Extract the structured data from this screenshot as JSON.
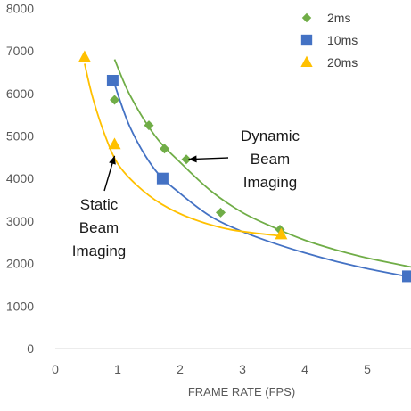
{
  "chart_data": {
    "type": "scatter",
    "title": "",
    "xlabel": "FRAME RATE (FPS)",
    "ylabel": "",
    "xlim": [
      0,
      5.7
    ],
    "ylim": [
      0,
      8000
    ],
    "xticks": [
      "0",
      "1",
      "2",
      "3",
      "4",
      "5"
    ],
    "yticks": [
      "0",
      "1000",
      "2000",
      "3000",
      "4000",
      "5000",
      "6000",
      "7000",
      "8000"
    ],
    "grid": false,
    "legend_position": "top-right",
    "series": [
      {
        "name": "2ms",
        "marker": "diamond",
        "color": "#70ad47",
        "points": [
          [
            0.95,
            5850
          ],
          [
            1.5,
            5250
          ],
          [
            1.75,
            4700
          ],
          [
            2.1,
            4450
          ],
          [
            2.65,
            3200
          ],
          [
            3.6,
            2800
          ]
        ],
        "trend": [
          [
            0.95,
            6800
          ],
          [
            1.2,
            5950
          ],
          [
            1.6,
            5000
          ],
          [
            2.0,
            4380
          ],
          [
            2.5,
            3700
          ],
          [
            3.0,
            3200
          ],
          [
            3.5,
            2850
          ],
          [
            4.0,
            2550
          ],
          [
            4.5,
            2320
          ],
          [
            5.0,
            2130
          ],
          [
            5.7,
            1920
          ]
        ]
      },
      {
        "name": "10ms",
        "marker": "square",
        "color": "#4472c4",
        "points": [
          [
            0.92,
            6300
          ],
          [
            1.72,
            4000
          ],
          [
            5.65,
            1700
          ]
        ],
        "trend": [
          [
            0.92,
            6350
          ],
          [
            1.2,
            5200
          ],
          [
            1.6,
            4200
          ],
          [
            2.0,
            3650
          ],
          [
            2.5,
            3100
          ],
          [
            3.0,
            2750
          ],
          [
            3.5,
            2480
          ],
          [
            4.0,
            2250
          ],
          [
            4.5,
            2050
          ],
          [
            5.0,
            1880
          ],
          [
            5.7,
            1680
          ]
        ]
      },
      {
        "name": "20ms",
        "marker": "triangle",
        "color": "#ffc000",
        "points": [
          [
            0.47,
            6850
          ],
          [
            0.95,
            4800
          ],
          [
            3.62,
            2680
          ]
        ],
        "trend": [
          [
            0.47,
            6700
          ],
          [
            0.6,
            5900
          ],
          [
            0.8,
            5000
          ],
          [
            1.0,
            4350
          ],
          [
            1.3,
            3850
          ],
          [
            1.7,
            3400
          ],
          [
            2.2,
            3050
          ],
          [
            2.8,
            2800
          ],
          [
            3.6,
            2650
          ]
        ]
      }
    ],
    "annotations": [
      {
        "lines": [
          "Dynamic",
          "Beam",
          "Imaging"
        ],
        "arrow_to": [
          2.05,
          4450
        ]
      },
      {
        "lines": [
          "Static",
          "Beam",
          "Imaging"
        ],
        "arrow_to": [
          0.95,
          4700
        ]
      }
    ]
  }
}
